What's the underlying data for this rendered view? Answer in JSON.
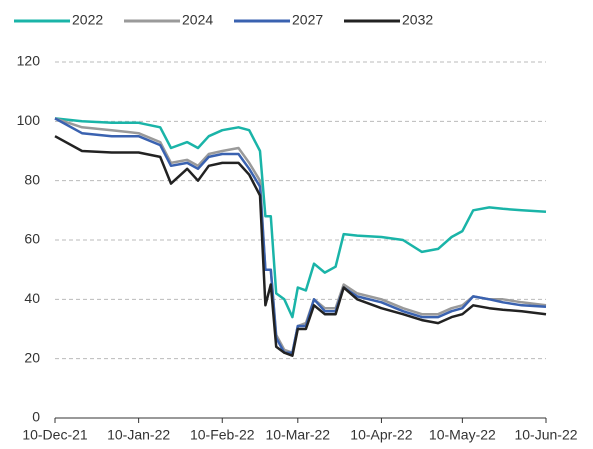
{
  "chart_data": {
    "type": "line",
    "x": [
      "2021-12-10",
      "2021-12-20",
      "2021-12-31",
      "2022-01-10",
      "2022-01-18",
      "2022-01-22",
      "2022-01-28",
      "2022-02-01",
      "2022-02-05",
      "2022-02-10",
      "2022-02-16",
      "2022-02-20",
      "2022-02-24",
      "2022-02-26",
      "2022-02-28",
      "2022-03-02",
      "2022-03-05",
      "2022-03-08",
      "2022-03-10",
      "2022-03-13",
      "2022-03-16",
      "2022-03-20",
      "2022-03-24",
      "2022-03-27",
      "2022-04-01",
      "2022-04-10",
      "2022-04-18",
      "2022-04-25",
      "2022-05-01",
      "2022-05-06",
      "2022-05-10",
      "2022-05-14",
      "2022-05-20",
      "2022-05-25",
      "2022-06-01",
      "2022-06-10"
    ],
    "series": [
      {
        "name": "2022",
        "color": "#1ab4a8",
        "values": [
          101,
          100,
          99.5,
          99.5,
          98,
          91,
          93,
          91,
          95,
          97,
          98,
          97,
          90,
          68,
          68,
          42,
          40,
          34,
          44,
          43,
          52,
          49,
          51,
          62,
          61.5,
          61,
          60,
          56,
          57,
          61,
          63,
          70,
          71,
          70.5,
          70,
          69.5
        ]
      },
      {
        "name": "2024",
        "color": "#9a9a9a",
        "values": [
          101,
          98,
          97,
          96,
          93,
          86,
          87,
          85,
          89,
          90,
          91,
          86,
          80,
          50,
          50,
          28,
          23,
          22,
          31,
          32,
          40,
          37,
          37,
          45,
          42,
          40,
          37,
          35,
          35,
          37,
          38,
          41,
          40,
          40,
          39,
          38
        ]
      },
      {
        "name": "2027",
        "color": "#3a62b0",
        "values": [
          101,
          96,
          95,
          95,
          92,
          85,
          86,
          84,
          88,
          89,
          89,
          84,
          78,
          50,
          50,
          27,
          22,
          22,
          31,
          31,
          40,
          36,
          36,
          44,
          41,
          39,
          36,
          34,
          34,
          36,
          37,
          41,
          40,
          39,
          38,
          37.5
        ]
      },
      {
        "name": "2032",
        "color": "#222222",
        "values": [
          95,
          90,
          89.5,
          89.5,
          88,
          79,
          84,
          80,
          85,
          86,
          86,
          82,
          75,
          38,
          45,
          24,
          22,
          21,
          30,
          30,
          38,
          35,
          35,
          44,
          40,
          37,
          35,
          33,
          32,
          34,
          35,
          38,
          37,
          36.5,
          36,
          35
        ]
      }
    ],
    "xlim": [
      "2021-12-10",
      "2022-06-10"
    ],
    "xticks": [
      {
        "value": "2021-12-10",
        "label": "10-Dec-21"
      },
      {
        "value": "2022-01-10",
        "label": "10-Jan-22"
      },
      {
        "value": "2022-02-10",
        "label": "10-Feb-22"
      },
      {
        "value": "2022-03-10",
        "label": "10-Mar-22"
      },
      {
        "value": "2022-04-10",
        "label": "10-Apr-22"
      },
      {
        "value": "2022-05-10",
        "label": "10-May-22"
      },
      {
        "value": "2022-06-10",
        "label": "10-Jun-22"
      }
    ],
    "ylim": [
      0,
      120
    ],
    "yticks": [
      0,
      20,
      40,
      60,
      80,
      100,
      120
    ],
    "grid": true
  }
}
